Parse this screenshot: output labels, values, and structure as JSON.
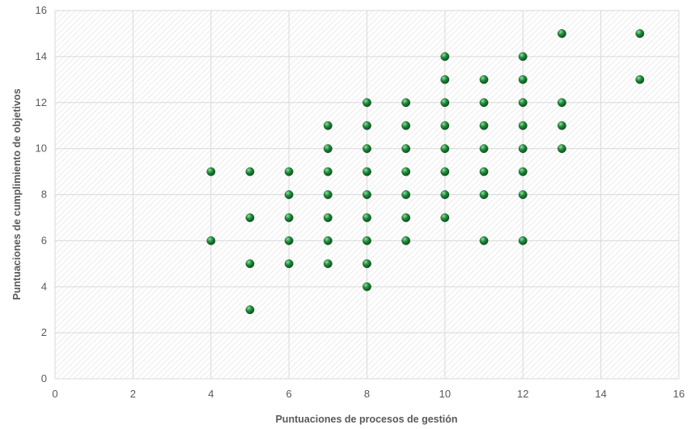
{
  "chart_data": {
    "type": "scatter",
    "title": "",
    "xlabel": "Puntuaciones de procesos de gestión",
    "ylabel": "Puntuaciones de cumplimiento de objetivos",
    "xlim": [
      0,
      16
    ],
    "ylim": [
      0,
      16
    ],
    "xticks": [
      "0",
      "2",
      "4",
      "6",
      "8",
      "10",
      "12",
      "14",
      "16"
    ],
    "yticks": [
      "0",
      "2",
      "4",
      "6",
      "8",
      "10",
      "12",
      "14",
      "16"
    ],
    "grid": true,
    "legend": "none",
    "marker_color": "#1f8a3c",
    "series": [
      {
        "points": [
          {
            "x": 4,
            "y": 9
          },
          {
            "x": 4,
            "y": 6
          },
          {
            "x": 5,
            "y": 9
          },
          {
            "x": 5,
            "y": 7
          },
          {
            "x": 5,
            "y": 5
          },
          {
            "x": 5,
            "y": 3
          },
          {
            "x": 6,
            "y": 9
          },
          {
            "x": 6,
            "y": 8
          },
          {
            "x": 6,
            "y": 7
          },
          {
            "x": 6,
            "y": 6
          },
          {
            "x": 6,
            "y": 5
          },
          {
            "x": 7,
            "y": 11
          },
          {
            "x": 7,
            "y": 10
          },
          {
            "x": 7,
            "y": 9
          },
          {
            "x": 7,
            "y": 8
          },
          {
            "x": 7,
            "y": 7
          },
          {
            "x": 7,
            "y": 6
          },
          {
            "x": 7,
            "y": 5
          },
          {
            "x": 8,
            "y": 12
          },
          {
            "x": 8,
            "y": 11
          },
          {
            "x": 8,
            "y": 10
          },
          {
            "x": 8,
            "y": 9
          },
          {
            "x": 8,
            "y": 8
          },
          {
            "x": 8,
            "y": 7
          },
          {
            "x": 8,
            "y": 6
          },
          {
            "x": 8,
            "y": 5
          },
          {
            "x": 8,
            "y": 4
          },
          {
            "x": 9,
            "y": 12
          },
          {
            "x": 9,
            "y": 11
          },
          {
            "x": 9,
            "y": 10
          },
          {
            "x": 9,
            "y": 9
          },
          {
            "x": 9,
            "y": 8
          },
          {
            "x": 9,
            "y": 7
          },
          {
            "x": 9,
            "y": 6
          },
          {
            "x": 10,
            "y": 14
          },
          {
            "x": 10,
            "y": 13
          },
          {
            "x": 10,
            "y": 12
          },
          {
            "x": 10,
            "y": 11
          },
          {
            "x": 10,
            "y": 10
          },
          {
            "x": 10,
            "y": 9
          },
          {
            "x": 10,
            "y": 8
          },
          {
            "x": 10,
            "y": 7
          },
          {
            "x": 11,
            "y": 13
          },
          {
            "x": 11,
            "y": 12
          },
          {
            "x": 11,
            "y": 11
          },
          {
            "x": 11,
            "y": 10
          },
          {
            "x": 11,
            "y": 9
          },
          {
            "x": 11,
            "y": 8
          },
          {
            "x": 11,
            "y": 6
          },
          {
            "x": 12,
            "y": 14
          },
          {
            "x": 12,
            "y": 13
          },
          {
            "x": 12,
            "y": 12
          },
          {
            "x": 12,
            "y": 11
          },
          {
            "x": 12,
            "y": 10
          },
          {
            "x": 12,
            "y": 9
          },
          {
            "x": 12,
            "y": 8
          },
          {
            "x": 12,
            "y": 6
          },
          {
            "x": 13,
            "y": 15
          },
          {
            "x": 13,
            "y": 12
          },
          {
            "x": 13,
            "y": 11
          },
          {
            "x": 13,
            "y": 10
          },
          {
            "x": 15,
            "y": 15
          },
          {
            "x": 15,
            "y": 13
          }
        ]
      }
    ]
  }
}
